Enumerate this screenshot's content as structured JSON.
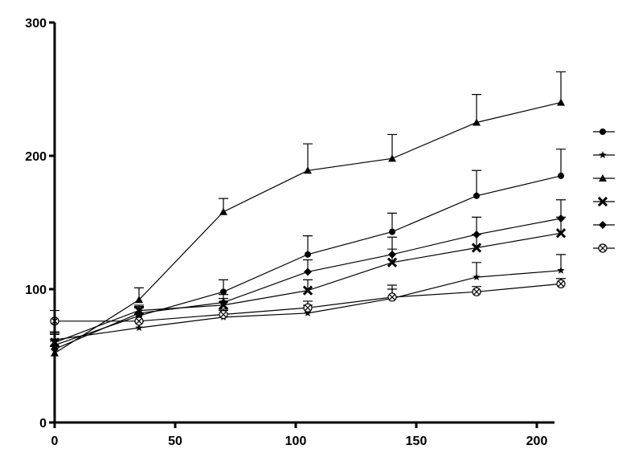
{
  "chart_data": {
    "type": "line",
    "title": "",
    "xlabel": "",
    "ylabel": "",
    "xlim": [
      0,
      210
    ],
    "ylim": [
      0,
      300
    ],
    "x_ticks": [
      0,
      50,
      100,
      150,
      200
    ],
    "y_ticks": [
      0,
      100,
      200,
      300
    ],
    "x": [
      0,
      35,
      70,
      105,
      140,
      175,
      210
    ],
    "grid": false,
    "legend_position": "right",
    "series": [
      {
        "marker": "circle",
        "values": [
          58,
          80,
          98,
          126,
          143,
          170,
          185
        ],
        "error": [
          8,
          6,
          9,
          14,
          14,
          19,
          20
        ]
      },
      {
        "marker": "star",
        "values": [
          62,
          71,
          79,
          82,
          93,
          109,
          114
        ],
        "error": [
          6,
          5,
          5,
          6,
          7,
          11,
          12
        ]
      },
      {
        "marker": "triangle",
        "values": [
          52,
          92,
          158,
          189,
          198,
          225,
          240
        ],
        "error": [
          5,
          9,
          10,
          20,
          18,
          21,
          23
        ]
      },
      {
        "marker": "x-cross",
        "values": [
          60,
          84,
          88,
          99,
          120,
          131,
          142
        ],
        "error": [
          7,
          4,
          5,
          8,
          10,
          10,
          12
        ]
      },
      {
        "marker": "diamond",
        "values": [
          55,
          82,
          90,
          113,
          126,
          141,
          153
        ],
        "error": [
          6,
          5,
          6,
          9,
          13,
          13,
          14
        ]
      },
      {
        "marker": "circle-x",
        "values": [
          76,
          76,
          81,
          86,
          94,
          98,
          104
        ],
        "error": [
          8,
          5,
          4,
          5,
          9,
          4,
          4
        ]
      }
    ]
  }
}
